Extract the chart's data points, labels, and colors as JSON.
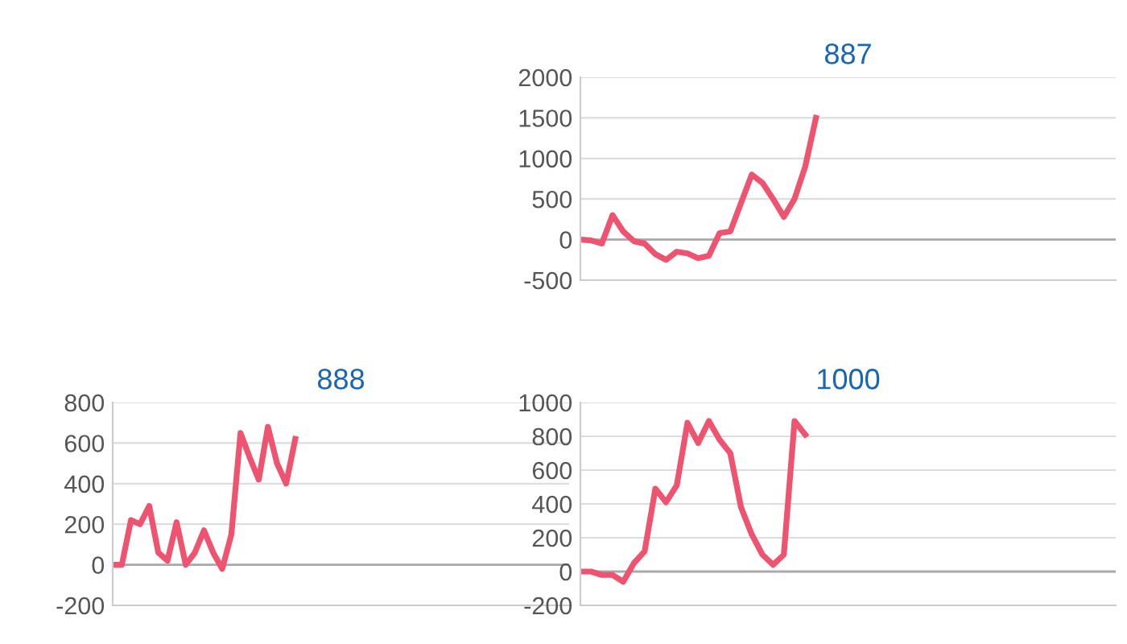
{
  "chart_data": [
    {
      "type": "line",
      "title": "887",
      "categories": [
        null,
        null,
        null,
        null,
        null,
        null,
        null,
        null,
        null,
        null,
        null,
        null,
        null,
        null,
        null,
        null,
        null,
        null,
        null,
        null,
        null,
        null,
        null,
        null,
        null,
        null,
        null,
        null,
        null,
        null,
        null,
        null,
        null,
        null,
        null,
        null,
        null,
        null,
        null,
        null,
        null,
        null,
        null,
        null,
        null,
        null,
        null,
        null,
        null,
        null,
        null
      ],
      "series": [
        {
          "color": "#ee5470",
          "values": [
            0,
            -10,
            -50,
            300,
            100,
            -20,
            -50,
            -180,
            -250,
            -150,
            -170,
            -230,
            -200,
            80,
            100,
            450,
            800,
            700,
            500,
            280,
            500,
            900,
            1500,
            null,
            null,
            null,
            null,
            null,
            null,
            null,
            null,
            null,
            null,
            null,
            null,
            null,
            null,
            null,
            null,
            null,
            null,
            null,
            null,
            null,
            null,
            null,
            null,
            null,
            null,
            null,
            null
          ]
        }
      ],
      "ylim": [
        -500,
        2000
      ],
      "yticks": [
        -500,
        0,
        500,
        1000,
        1500,
        2000
      ],
      "grid": "y",
      "marker": "none",
      "line_style": "solid",
      "tick_labels": "y"
    },
    {
      "type": "line",
      "title": "888",
      "categories": [
        null,
        null,
        null,
        null,
        null,
        null,
        null,
        null,
        null,
        null,
        null,
        null,
        null,
        null,
        null,
        null,
        null,
        null,
        null,
        null,
        null,
        null,
        null,
        null,
        null,
        null,
        null,
        null,
        null,
        null,
        null,
        null,
        null,
        null,
        null,
        null,
        null,
        null,
        null,
        null,
        null,
        null,
        null,
        null,
        null,
        null,
        null,
        null,
        null,
        null,
        null
      ],
      "series": [
        {
          "color": "#ee5470",
          "values": [
            0,
            0,
            220,
            200,
            290,
            60,
            20,
            210,
            0,
            60,
            170,
            60,
            -20,
            150,
            650,
            530,
            420,
            680,
            500,
            400,
            620,
            null,
            null,
            null,
            null,
            null,
            null,
            null,
            null,
            null,
            null,
            null,
            null,
            null,
            null,
            null,
            null,
            null,
            null,
            null,
            null,
            null,
            null,
            null,
            null,
            null,
            null,
            null,
            null,
            null,
            null
          ]
        }
      ],
      "ylim": [
        -200,
        800
      ],
      "yticks": [
        -200,
        0,
        200,
        400,
        600,
        800
      ],
      "grid": "y",
      "marker": "none",
      "line_style": "solid",
      "tick_labels": "y"
    },
    {
      "type": "line",
      "title": "1000",
      "categories": [
        null,
        null,
        null,
        null,
        null,
        null,
        null,
        null,
        null,
        null,
        null,
        null,
        null,
        null,
        null,
        null,
        null,
        null,
        null,
        null,
        null,
        null,
        null,
        null,
        null,
        null,
        null,
        null,
        null,
        null,
        null,
        null,
        null,
        null,
        null,
        null,
        null,
        null,
        null,
        null,
        null,
        null,
        null,
        null,
        null,
        null,
        null,
        null,
        null,
        null,
        null
      ],
      "series": [
        {
          "color": "#ee5470",
          "values": [
            0,
            0,
            -20,
            -20,
            -60,
            50,
            120,
            490,
            410,
            510,
            880,
            760,
            890,
            780,
            700,
            380,
            220,
            100,
            40,
            100,
            890,
            810,
            null,
            null,
            null,
            null,
            null,
            null,
            null,
            null,
            null,
            null,
            null,
            null,
            null,
            null,
            null,
            null,
            null,
            null,
            null,
            null,
            null,
            null,
            null,
            null,
            null,
            null,
            null,
            null,
            null
          ]
        }
      ],
      "ylim": [
        -200,
        1000
      ],
      "yticks": [
        -200,
        0,
        200,
        400,
        600,
        800,
        1000
      ],
      "grid": "y",
      "marker": "none",
      "line_style": "solid",
      "tick_labels": "y"
    }
  ]
}
